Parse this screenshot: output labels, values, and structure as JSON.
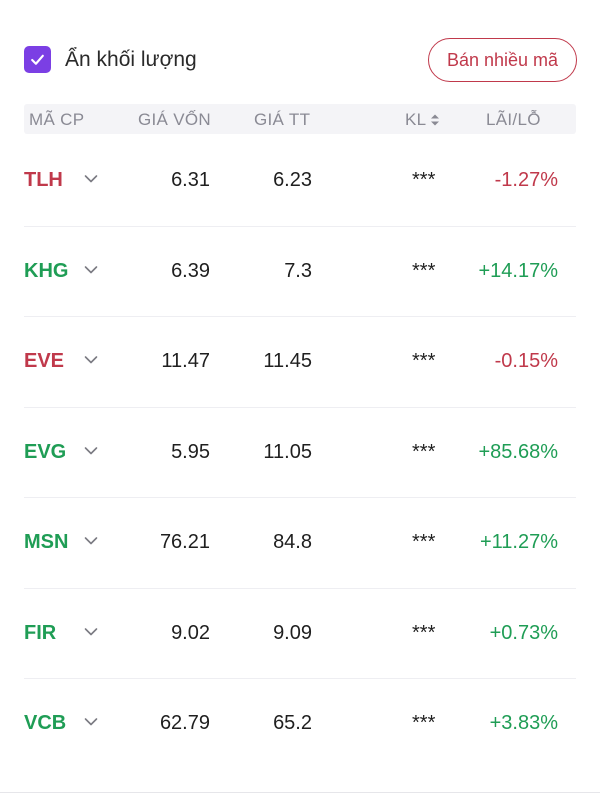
{
  "header": {
    "hide_volume_checked": true,
    "hide_volume_label": "Ẩn khối lượng",
    "sell_multiple_label": "Bán nhiều mã"
  },
  "table": {
    "columns": {
      "ticker": "MÃ CP",
      "cost_price": "GIÁ VỐN",
      "market_price": "GIÁ TT",
      "quantity": "KL",
      "pnl": "LÃI/LỖ"
    },
    "rows": [
      {
        "ticker": "TLH",
        "cost": "6.31",
        "price": "6.23",
        "qty": "***",
        "pnl": "-1.27%",
        "trend": "neg"
      },
      {
        "ticker": "KHG",
        "cost": "6.39",
        "price": "7.3",
        "qty": "***",
        "pnl": "+14.17%",
        "trend": "pos"
      },
      {
        "ticker": "EVE",
        "cost": "11.47",
        "price": "11.45",
        "qty": "***",
        "pnl": "-0.15%",
        "trend": "neg"
      },
      {
        "ticker": "EVG",
        "cost": "5.95",
        "price": "11.05",
        "qty": "***",
        "pnl": "+85.68%",
        "trend": "pos"
      },
      {
        "ticker": "MSN",
        "cost": "76.21",
        "price": "84.8",
        "qty": "***",
        "pnl": "+11.27%",
        "trend": "pos"
      },
      {
        "ticker": "FIR",
        "cost": "9.02",
        "price": "9.09",
        "qty": "***",
        "pnl": "+0.73%",
        "trend": "pos"
      },
      {
        "ticker": "VCB",
        "cost": "62.79",
        "price": "65.2",
        "qty": "***",
        "pnl": "+3.83%",
        "trend": "pos"
      }
    ]
  },
  "colors": {
    "accent": "#7b3fe4",
    "negative": "#c0394b",
    "positive": "#1f9d55"
  },
  "icons": {
    "checkbox": "check-icon",
    "sort": "sort-icon",
    "row_expand": "chevron-down-icon"
  }
}
